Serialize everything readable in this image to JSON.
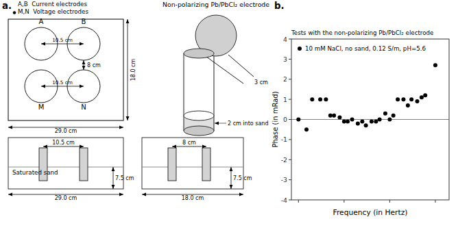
{
  "chart_data": {
    "type": "scatter",
    "title": "Tests with the non-polarizing Pb/PbCl₂ electrode",
    "x_label": "Frequency (in Hertz)",
    "y_label": "Phase (in mRad)",
    "log": "x",
    "xlim": [
      0.7,
      2000
    ],
    "xticks": [
      1,
      10,
      100,
      1000
    ],
    "ylim": [
      -4,
      4
    ],
    "yticks": [
      -4,
      -3,
      -2,
      -1,
      0,
      1,
      2,
      3,
      4
    ],
    "tick_labels": "y",
    "grid": false,
    "legend": "upper left",
    "background_color": "#ffffff",
    "series": [
      {
        "name": "10 mM NaCl, no sand, 0.12 S/m, pH=5.6",
        "color": "#000000",
        "marker": "circle",
        "x": [
          1,
          1.5,
          2,
          3,
          4,
          5,
          6,
          8,
          10,
          12,
          15,
          20,
          25,
          30,
          40,
          50,
          60,
          80,
          100,
          120,
          150,
          200,
          250,
          300,
          400,
          500,
          600,
          1000
        ],
        "values": [
          0.0,
          -0.5,
          1.0,
          1.0,
          1.0,
          0.2,
          0.2,
          0.1,
          -0.1,
          -0.1,
          0.0,
          -0.2,
          -0.1,
          -0.3,
          -0.1,
          -0.1,
          0.0,
          0.3,
          0.0,
          0.2,
          1.0,
          1.0,
          0.7,
          1.0,
          0.9,
          1.1,
          1.2,
          2.7
        ]
      }
    ],
    "reference_line": {
      "y": 0,
      "color": "#808080"
    },
    "annotations": [
      "a.",
      "A,B  Current electrodes",
      "M,N  Voltage electrodes",
      "A",
      "B",
      "M",
      "N",
      "10.5 cm",
      "10.5 cm",
      "8 cm",
      "18.0 cm",
      "29.0 cm",
      "10.5 cm",
      "Saturated sand",
      "7.5 cm",
      "29.0 cm",
      "Non-polarizing Pb/PbCl₂ electrode",
      "3 cm",
      "2 cm into sand",
      "8 cm",
      "7.5 cm",
      "18.0 cm",
      "b."
    ]
  }
}
